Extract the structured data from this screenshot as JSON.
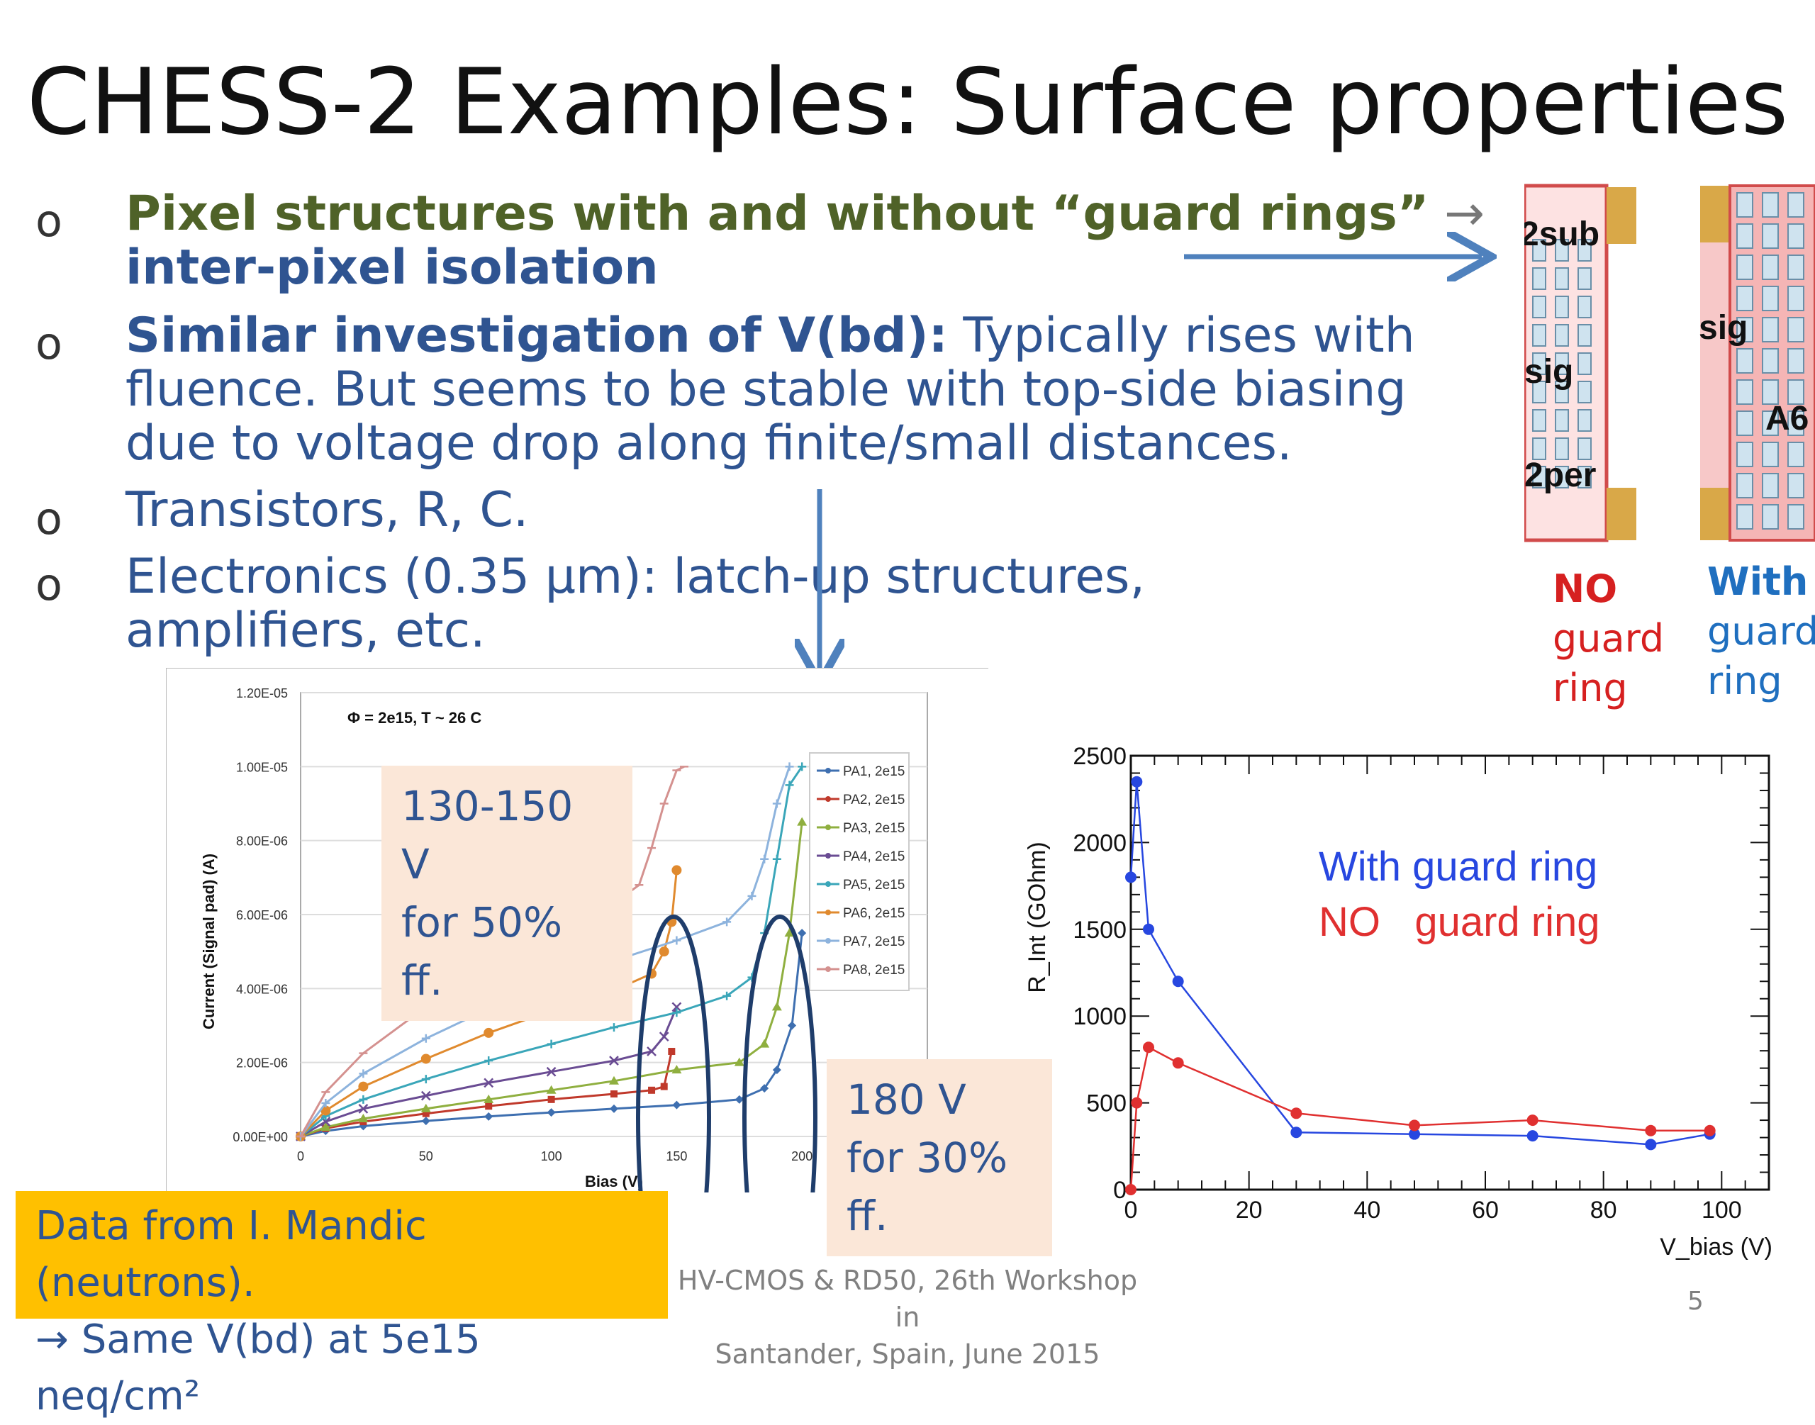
{
  "title": "CHESS-2 Examples: Surface properties",
  "bullets": [
    {
      "marker": "o",
      "lead": "Pixel structures with and without “guard rings”",
      "arrow": " →",
      "line2": "inter-pixel isolation"
    },
    {
      "marker": "o",
      "lead": "Similar investigation of V(bd):",
      "rest": " Typically rises with",
      "line2": "fluence. But seems to be stable with top-side biasing",
      "line3": "due to voltage drop along finite/small distances."
    },
    {
      "marker": "o",
      "text": "Transistors, R, C."
    },
    {
      "marker": "o",
      "text": "Electronics (0.35 μm): latch-up structures,",
      "line2": "amplifiers, etc."
    }
  ],
  "layout_labels": {
    "left": [
      "2sub",
      "sig",
      "2per"
    ],
    "right": [
      "sig",
      "A6"
    ]
  },
  "guard_ring_labels": {
    "no": {
      "word": "NO",
      "l2": "guard",
      "l3": "ring",
      "color": "#d62020"
    },
    "with": {
      "word": "With",
      "l2": "guard",
      "l3": "ring",
      "color": "#1f6fbf"
    }
  },
  "notes": {
    "n1_l1": "130-150 V",
    "n1_l2": "for 50% ff.",
    "n2_l1": "180 V",
    "n2_l2": "for 30% ff."
  },
  "data_box": {
    "l1": "Data from I. Mandic (neutrons).",
    "l2": "→ Same V(bd) at 5e15 neq/cm²"
  },
  "footer": {
    "l1": "HV-CMOS & RD50, 26th Workshop in",
    "l2": "Santander, Spain, June 2015"
  },
  "page_number": "5",
  "chart_data": [
    {
      "type": "line",
      "annotation": "Φ = 2e15, T ~ 26 C",
      "xlabel": "Bias (V)",
      "ylabel": "Current (Signal pad) (A)",
      "xlim": [
        0,
        250
      ],
      "ylim": [
        0,
        1.2e-05
      ],
      "xticks": [
        0,
        50,
        100,
        150,
        200
      ],
      "yticks": [
        0,
        2e-06,
        4e-06,
        6e-06,
        8e-06,
        1e-05,
        1.2e-05
      ],
      "ytick_labels": [
        "0.00E+00",
        "2.00E-06",
        "4.00E-06",
        "6.00E-06",
        "8.00E-06",
        "1.00E-05",
        "1.20E-05"
      ],
      "grid": true,
      "legend": "right",
      "series": [
        {
          "name": "PA1, 2e15",
          "color": "#3e6fb0",
          "marker": "diamond",
          "points": [
            [
              0,
              0
            ],
            [
              10,
              1.5e-07
            ],
            [
              25,
              2.8e-07
            ],
            [
              50,
              4.2e-07
            ],
            [
              75,
              5.4e-07
            ],
            [
              100,
              6.5e-07
            ],
            [
              125,
              7.5e-07
            ],
            [
              150,
              8.5e-07
            ],
            [
              175,
              1e-06
            ],
            [
              185,
              1.3e-06
            ],
            [
              190,
              1.8e-06
            ],
            [
              196,
              3e-06
            ],
            [
              200,
              5.5e-06
            ]
          ]
        },
        {
          "name": "PA2, 2e15",
          "color": "#c0392b",
          "marker": "square",
          "points": [
            [
              0,
              0
            ],
            [
              10,
              2.2e-07
            ],
            [
              25,
              4e-07
            ],
            [
              50,
              6.2e-07
            ],
            [
              75,
              8.2e-07
            ],
            [
              100,
              1e-06
            ],
            [
              125,
              1.15e-06
            ],
            [
              140,
              1.25e-06
            ],
            [
              145,
              1.35e-06
            ],
            [
              148,
              2.3e-06
            ]
          ]
        },
        {
          "name": "PA3, 2e15",
          "color": "#8faf3f",
          "marker": "triangle",
          "points": [
            [
              0,
              0
            ],
            [
              10,
              2.5e-07
            ],
            [
              25,
              4.8e-07
            ],
            [
              50,
              7.5e-07
            ],
            [
              75,
              1e-06
            ],
            [
              100,
              1.25e-06
            ],
            [
              125,
              1.5e-06
            ],
            [
              150,
              1.8e-06
            ],
            [
              175,
              2e-06
            ],
            [
              185,
              2.5e-06
            ],
            [
              190,
              3.5e-06
            ],
            [
              195,
              5.5e-06
            ],
            [
              200,
              8.5e-06
            ]
          ]
        },
        {
          "name": "PA4, 2e15",
          "color": "#6a4c93",
          "marker": "x",
          "points": [
            [
              0,
              0
            ],
            [
              10,
              4e-07
            ],
            [
              25,
              7.5e-07
            ],
            [
              50,
              1.1e-06
            ],
            [
              75,
              1.45e-06
            ],
            [
              100,
              1.75e-06
            ],
            [
              125,
              2.05e-06
            ],
            [
              140,
              2.3e-06
            ],
            [
              145,
              2.7e-06
            ],
            [
              150,
              3.5e-06
            ]
          ]
        },
        {
          "name": "PA5, 2e15",
          "color": "#3aa6b9",
          "marker": "star",
          "points": [
            [
              0,
              0
            ],
            [
              10,
              5.5e-07
            ],
            [
              25,
              1e-06
            ],
            [
              50,
              1.55e-06
            ],
            [
              75,
              2.05e-06
            ],
            [
              100,
              2.5e-06
            ],
            [
              125,
              2.95e-06
            ],
            [
              150,
              3.35e-06
            ],
            [
              170,
              3.8e-06
            ],
            [
              180,
              4.3e-06
            ],
            [
              185,
              5.5e-06
            ],
            [
              190,
              7.5e-06
            ],
            [
              195,
              9.5e-06
            ],
            [
              200,
              1e-05
            ]
          ]
        },
        {
          "name": "PA6, 2e15",
          "color": "#e08a2e",
          "marker": "circle",
          "points": [
            [
              0,
              0
            ],
            [
              10,
              7e-07
            ],
            [
              25,
              1.35e-06
            ],
            [
              50,
              2.1e-06
            ],
            [
              75,
              2.8e-06
            ],
            [
              100,
              3.4e-06
            ],
            [
              125,
              3.95e-06
            ],
            [
              140,
              4.4e-06
            ],
            [
              145,
              5e-06
            ],
            [
              148,
              5.8e-06
            ],
            [
              150,
              7.2e-06
            ]
          ]
        },
        {
          "name": "PA7, 2e15",
          "color": "#8db3dd",
          "marker": "plus",
          "points": [
            [
              0,
              0
            ],
            [
              10,
              9e-07
            ],
            [
              25,
              1.7e-06
            ],
            [
              50,
              2.65e-06
            ],
            [
              75,
              3.45e-06
            ],
            [
              100,
              4.15e-06
            ],
            [
              125,
              4.75e-06
            ],
            [
              150,
              5.3e-06
            ],
            [
              170,
              5.8e-06
            ],
            [
              180,
              6.5e-06
            ],
            [
              185,
              7.5e-06
            ],
            [
              190,
              9e-06
            ],
            [
              195,
              1e-05
            ]
          ]
        },
        {
          "name": "PA8, 2e15",
          "color": "#d4918f",
          "marker": "dash",
          "points": [
            [
              0,
              0
            ],
            [
              10,
              1.2e-06
            ],
            [
              25,
              2.25e-06
            ],
            [
              50,
              3.5e-06
            ],
            [
              75,
              4.55e-06
            ],
            [
              100,
              5.5e-06
            ],
            [
              125,
              6.3e-06
            ],
            [
              135,
              6.8e-06
            ],
            [
              140,
              7.8e-06
            ],
            [
              145,
              9e-06
            ],
            [
              150,
              9.9e-06
            ],
            [
              153,
              1e-05
            ]
          ]
        }
      ]
    },
    {
      "type": "line",
      "xlabel": "V_bias (V)",
      "ylabel": "R_Int (GOhm)",
      "xlim": [
        0,
        108
      ],
      "ylim": [
        0,
        2500
      ],
      "xticks": [
        0,
        20,
        40,
        60,
        80,
        100
      ],
      "yticks": [
        0,
        500,
        1000,
        1500,
        2000,
        2500
      ],
      "legend_text": [
        "With guard ring",
        "NO   guard ring"
      ],
      "series": [
        {
          "name": "With guard ring",
          "color": "#2747e0",
          "points": [
            [
              0,
              1800
            ],
            [
              1,
              2350
            ],
            [
              3,
              1500
            ],
            [
              8,
              1200
            ],
            [
              28,
              330
            ],
            [
              48,
              320
            ],
            [
              68,
              310
            ],
            [
              88,
              260
            ],
            [
              98,
              320
            ]
          ]
        },
        {
          "name": "NO   guard ring",
          "color": "#e03030",
          "points": [
            [
              0,
              0
            ],
            [
              1,
              500
            ],
            [
              3,
              820
            ],
            [
              8,
              730
            ],
            [
              28,
              440
            ],
            [
              48,
              370
            ],
            [
              68,
              400
            ],
            [
              88,
              340
            ],
            [
              98,
              340
            ]
          ]
        }
      ]
    }
  ]
}
